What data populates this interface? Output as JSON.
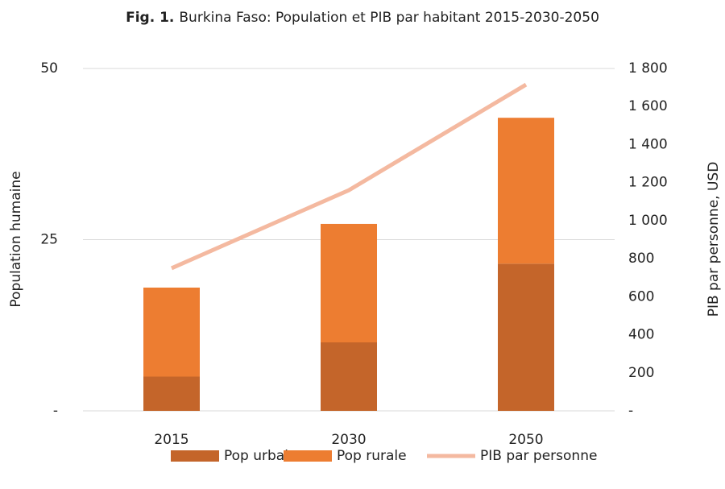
{
  "chart_data": {
    "type": "bar",
    "stacked": true,
    "title_prefix": "Fig. 1.",
    "title": "Burkina Faso: Population et PIB par habitant 2015-2030-2050",
    "y_label": "Population humaine",
    "y2_label": "PIB par personne, USD",
    "categories": [
      "2015",
      "2030",
      "2050"
    ],
    "series": [
      {
        "name": "Pop urbaine",
        "type": "bar",
        "axis": "y",
        "color": "#c4652a",
        "values": [
          5,
          10,
          21.5
        ]
      },
      {
        "name": "Pop rurale",
        "type": "bar",
        "axis": "y",
        "color": "#ed7d31",
        "values": [
          13,
          17.3,
          21.3
        ]
      },
      {
        "name": "PIB par personne",
        "type": "line",
        "axis": "y2",
        "color": "#f4b9a0",
        "values": [
          750,
          1160,
          1715
        ]
      }
    ],
    "ylim": [
      0,
      50
    ],
    "yticks": [
      {
        "value": 0,
        "label": "-"
      },
      25,
      50
    ],
    "y2lim": [
      0,
      1800
    ],
    "y2ticks": [
      {
        "value": 0,
        "label": "-"
      },
      200,
      400,
      600,
      800,
      {
        "value": 1000,
        "label": "1 000"
      },
      {
        "value": 1200,
        "label": "1 200"
      },
      {
        "value": 1400,
        "label": "1 400"
      },
      {
        "value": 1600,
        "label": "1 600"
      },
      {
        "value": 1800,
        "label": "1 800"
      }
    ],
    "grid": true,
    "legend": "bottom"
  }
}
